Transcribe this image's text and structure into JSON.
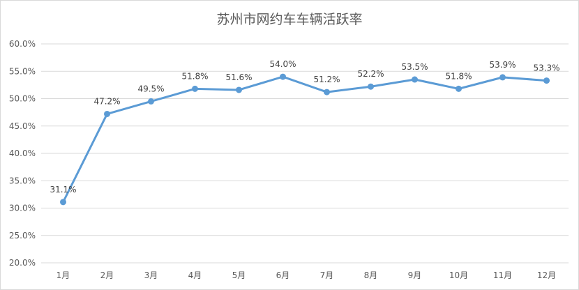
{
  "chart_data": {
    "type": "line",
    "title": "苏州市网约车车辆活跃率",
    "categories": [
      "1月",
      "2月",
      "3月",
      "4月",
      "5月",
      "6月",
      "7月",
      "8月",
      "9月",
      "10月",
      "11月",
      "12月"
    ],
    "series": [
      {
        "values": [
          31.1,
          47.2,
          49.5,
          51.8,
          51.6,
          54.0,
          51.2,
          52.2,
          53.5,
          51.8,
          53.9,
          53.3
        ]
      }
    ],
    "data_labels": [
      "31.1%",
      "47.2%",
      "49.5%",
      "51.8%",
      "51.6%",
      "54.0%",
      "51.2%",
      "52.2%",
      "53.5%",
      "51.8%",
      "53.9%",
      "53.3%"
    ],
    "yticks": [
      "20.0%",
      "25.0%",
      "30.0%",
      "35.0%",
      "40.0%",
      "45.0%",
      "50.0%",
      "55.0%",
      "60.0%"
    ],
    "ylim": [
      20,
      60
    ],
    "grid": true,
    "line_color": "#5b9bd5",
    "grid_color": "#d9d9d9"
  }
}
